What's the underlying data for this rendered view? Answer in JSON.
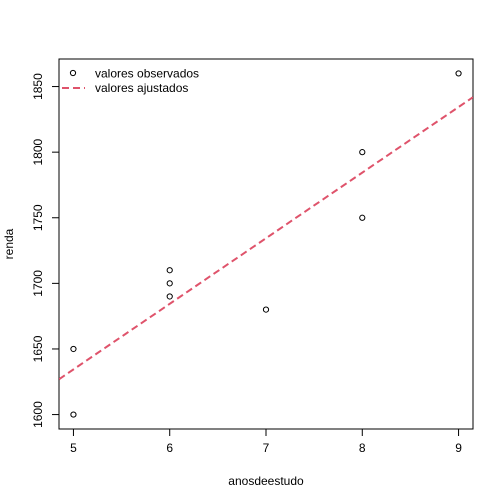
{
  "chart_data": {
    "type": "scatter",
    "xlabel": "anosdeestudo",
    "ylabel": "renda",
    "xlim": [
      4.85,
      9.15
    ],
    "ylim": [
      1589,
      1871
    ],
    "x_ticks": [
      5,
      6,
      7,
      8,
      9
    ],
    "y_ticks": [
      1600,
      1650,
      1700,
      1750,
      1800,
      1850
    ],
    "grid": false,
    "legend": {
      "position": "top-left",
      "entries": [
        "valores observados",
        "valores ajustados"
      ]
    },
    "series": [
      {
        "name": "valores observados",
        "kind": "points",
        "color": "#000000",
        "points": [
          {
            "x": 5,
            "y": 1600
          },
          {
            "x": 5,
            "y": 1650
          },
          {
            "x": 6,
            "y": 1690
          },
          {
            "x": 6,
            "y": 1700
          },
          {
            "x": 6,
            "y": 1710
          },
          {
            "x": 7,
            "y": 1680
          },
          {
            "x": 8,
            "y": 1750
          },
          {
            "x": 8,
            "y": 1800
          },
          {
            "x": 9,
            "y": 1860
          }
        ]
      },
      {
        "name": "valores ajustados",
        "kind": "line",
        "color": "#DF536B",
        "dash": "dashed",
        "intercept": 1384.4,
        "slope": 50.0
      }
    ]
  }
}
